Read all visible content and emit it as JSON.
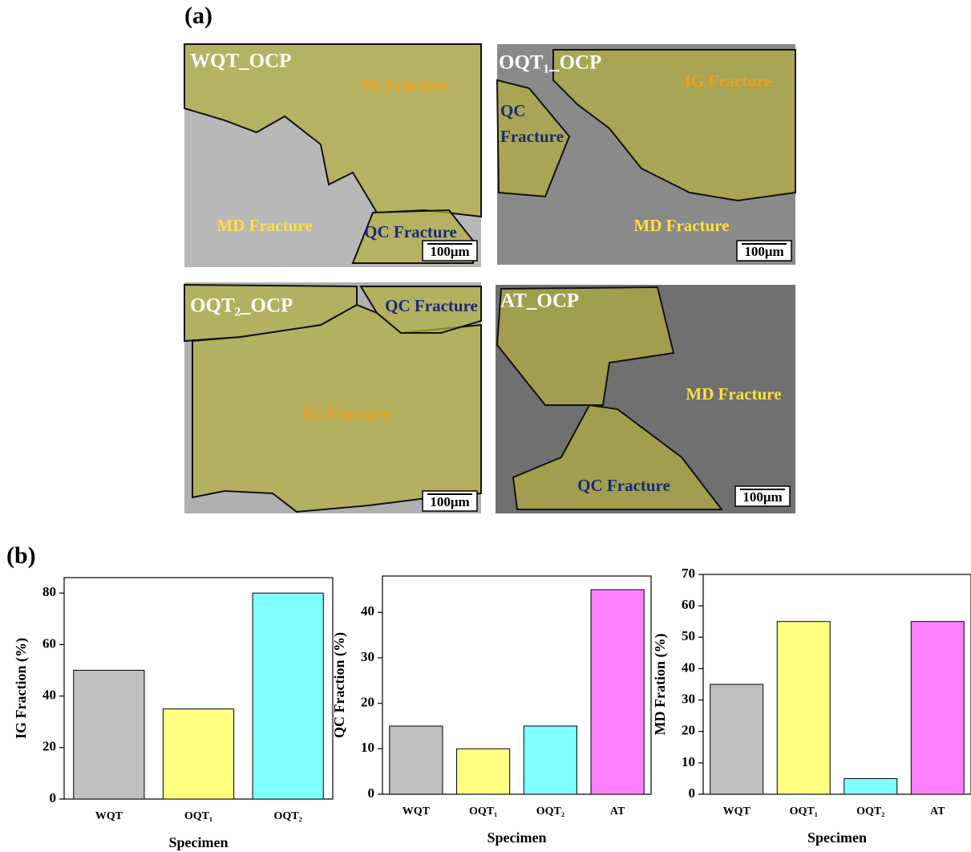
{
  "figure": {
    "panel_a_label": "(a)",
    "panel_b_label": "(b)",
    "micrographs": [
      {
        "title": "WQT_OCP",
        "labels": [
          "IG Fracture",
          "MD Fracture",
          "QC Fracture"
        ],
        "scale_bar": "100μm"
      },
      {
        "title": "OQT₁_OCP",
        "labels": [
          "IG Fracture",
          "QC",
          "Fracture",
          "MD Fracture"
        ],
        "scale_bar": "100μm"
      },
      {
        "title": "OQT₂_OCP",
        "labels": [
          "QC Fracture",
          "IG Fracture"
        ],
        "scale_bar": "100μm"
      },
      {
        "title": "AT_OCP",
        "labels": [
          "MD Fracture",
          "QC Fracture"
        ],
        "scale_bar": "100μm"
      }
    ]
  },
  "chart_data": [
    {
      "type": "bar",
      "categories": [
        "WQT",
        "OQT₁",
        "OQT₂"
      ],
      "values": [
        50,
        35,
        80
      ],
      "colors": [
        "#c0c0c0",
        "#ffff80",
        "#80ffff"
      ],
      "ylim": [
        0,
        86
      ],
      "yticks": [
        0,
        20,
        40,
        60,
        80
      ],
      "xlabel": "Specimen",
      "ylabel": "IG Fraction (%)"
    },
    {
      "type": "bar",
      "categories": [
        "WQT",
        "OQT₁",
        "OQT₂",
        "AT"
      ],
      "values": [
        15,
        10,
        15,
        45
      ],
      "colors": [
        "#c0c0c0",
        "#ffff80",
        "#80ffff",
        "#ff80ff"
      ],
      "ylim": [
        0,
        48
      ],
      "yticks": [
        0,
        10,
        20,
        30,
        40
      ],
      "xlabel": "Specimen",
      "ylabel": "QC Fraction (%)"
    },
    {
      "type": "bar",
      "categories": [
        "WQT",
        "OQT₁",
        "OQT₂",
        "AT"
      ],
      "values": [
        35,
        55,
        5,
        55
      ],
      "colors": [
        "#c0c0c0",
        "#ffff80",
        "#80ffff",
        "#ff80ff"
      ],
      "ylim": [
        0,
        70
      ],
      "yticks": [
        0,
        10,
        20,
        30,
        40,
        50,
        60,
        70
      ],
      "xlabel": "Specimen",
      "ylabel": "MD Fration (%)"
    }
  ]
}
